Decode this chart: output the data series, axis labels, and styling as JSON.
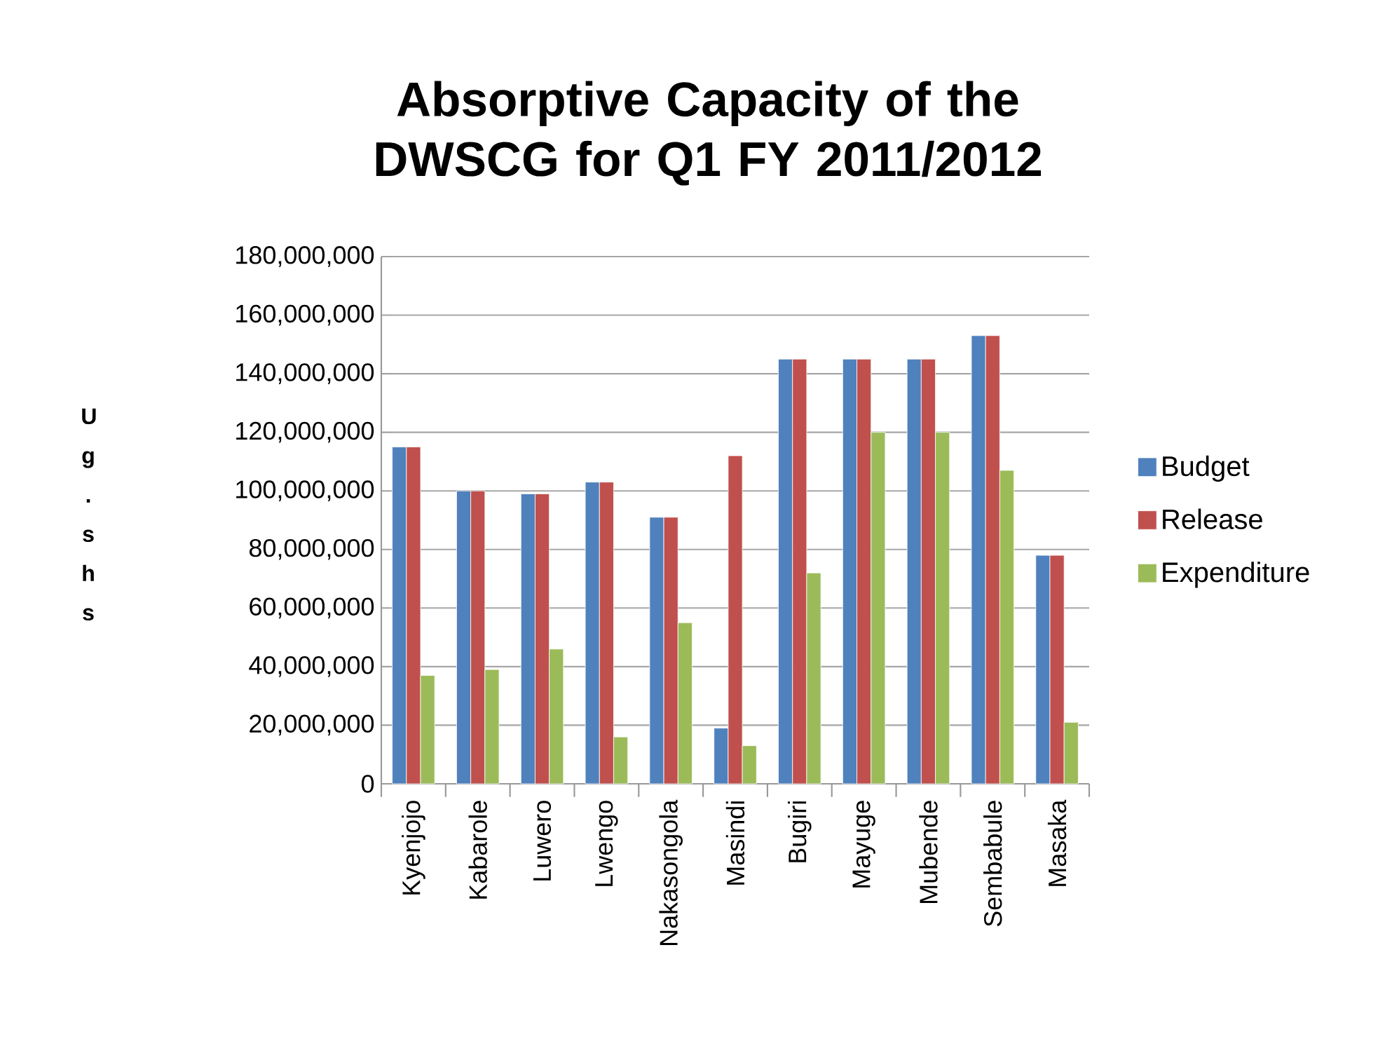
{
  "chart_data": {
    "type": "bar",
    "title": "Absorptive Capacity of the DWSCG for Q1 FY 2011/2012",
    "ylabel": "Ug. shs",
    "categories": [
      "Kyenjojo",
      "Kabarole",
      "Luwero",
      "Lwengo",
      "Nakasongola",
      "Masindi",
      "Bugiri",
      "Mayuge",
      "Mubende",
      "Sembabule",
      "Masaka"
    ],
    "series": [
      {
        "name": "Budget",
        "color": "#4f81bd",
        "values": [
          115000000,
          100000000,
          99000000,
          103000000,
          91000000,
          19000000,
          145000000,
          145000000,
          145000000,
          153000000,
          78000000
        ]
      },
      {
        "name": "Release",
        "color": "#c0504d",
        "values": [
          115000000,
          100000000,
          99000000,
          103000000,
          91000000,
          112000000,
          145000000,
          145000000,
          145000000,
          153000000,
          78000000
        ]
      },
      {
        "name": "Expenditure",
        "color": "#9bbb59",
        "values": [
          37000000,
          39000000,
          46000000,
          16000000,
          55000000,
          13000000,
          72000000,
          120000000,
          120000000,
          107000000,
          21000000
        ]
      }
    ],
    "ylim": [
      0,
      180000000
    ],
    "yticks": [
      {
        "value": 0,
        "label": "0"
      },
      {
        "value": 20000000,
        "label": "20,000,000"
      },
      {
        "value": 40000000,
        "label": "40,000,000"
      },
      {
        "value": 60000000,
        "label": "60,000,000"
      },
      {
        "value": 80000000,
        "label": "80,000,000"
      },
      {
        "value": 100000000,
        "label": "100,000,000"
      },
      {
        "value": 120000000,
        "label": "120,000,000"
      },
      {
        "value": 140000000,
        "label": "140,000,000"
      },
      {
        "value": 160000000,
        "label": "160,000,000"
      },
      {
        "value": 180000000,
        "label": "180,000,000"
      }
    ],
    "grid": "y",
    "legend": "right"
  }
}
